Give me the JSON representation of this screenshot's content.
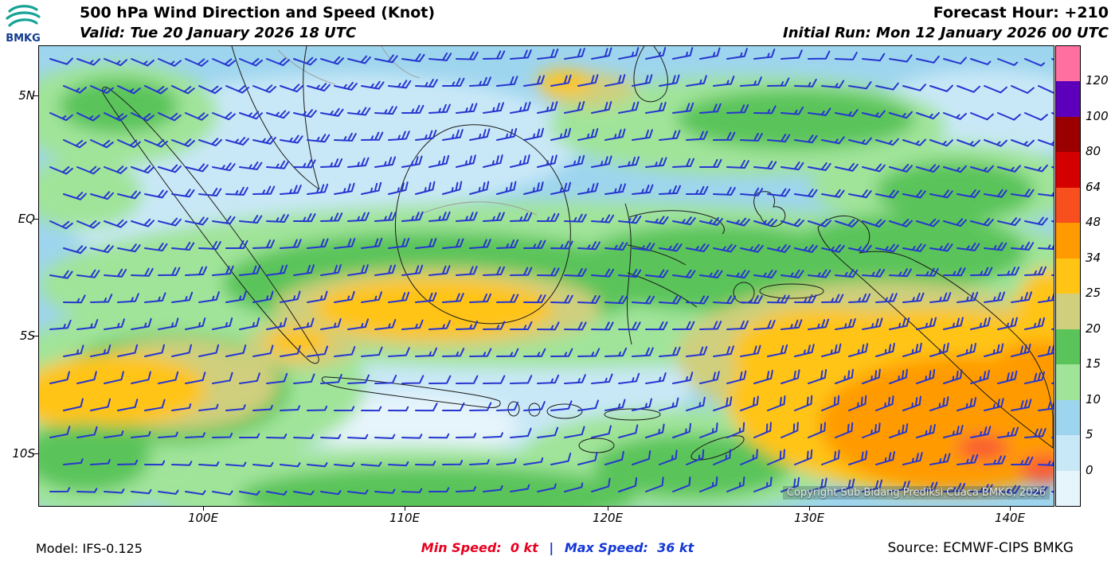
{
  "header": {
    "logo_text": "BMKG",
    "title": "500 hPa Wind Direction and Speed (Knot)",
    "forecast_hour": "Forecast Hour: +210",
    "valid": "Valid: Tue 20 January 2026 18 UTC",
    "initial_run": "Initial Run: Mon 12 January 2026 00 UTC"
  },
  "map": {
    "y_ticks": [
      "5N",
      "EQ",
      "5S",
      "10S"
    ],
    "x_ticks": [
      "100E",
      "110E",
      "120E",
      "130E",
      "140E"
    ],
    "copyright": "Copyright Sub Bidang Prediksi Cuaca BMKG, 2026",
    "barb_color": "#2636d0"
  },
  "colorbar": {
    "unit": "Knot",
    "tick_labels": [
      "120",
      "100",
      "80",
      "64",
      "48",
      "34",
      "25",
      "20",
      "15",
      "10",
      "5",
      "0"
    ],
    "colors_top_to_bottom": [
      "#ff6fa0",
      "#5c00bb",
      "#9b0000",
      "#d40000",
      "#f84f1e",
      "#ff9b00",
      "#ffc414",
      "#cfcf7d",
      "#5ac45a",
      "#a0e49a",
      "#9ed5ee",
      "#c9e8f7",
      "#e6f4fb"
    ]
  },
  "footer": {
    "model": "Model: IFS-0.125",
    "min_speed": "Min Speed:  0 kt",
    "separator": "|",
    "max_speed": "Max Speed:  36 kt",
    "source": "Source: ECMWF-CIPS BMKG"
  }
}
